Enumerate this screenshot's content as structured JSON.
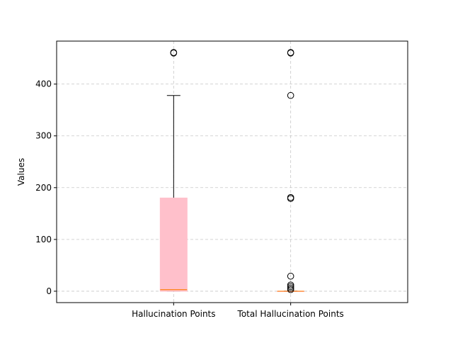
{
  "chart_data": {
    "type": "box",
    "title": "",
    "xlabel": "",
    "ylabel": "Values",
    "ylim": [
      -22,
      483
    ],
    "yticks": [
      0,
      100,
      200,
      300,
      400
    ],
    "grid": true,
    "categories": [
      "Hallucination Points",
      "Total Hallucination Points"
    ],
    "boxes": [
      {
        "name": "Hallucination Points",
        "whisker_low": 0,
        "q1": 0,
        "median": 3,
        "q3": 180,
        "whisker_high": 378,
        "fliers": [
          460,
          461
        ],
        "fill": "#ffc0cb",
        "median_color": "#ff7f0e"
      },
      {
        "name": "Total Hallucination Points",
        "whisker_low": 0,
        "q1": 0,
        "median": 0,
        "q3": 0,
        "whisker_high": 0,
        "fliers": [
          3,
          6,
          9,
          12,
          29,
          179,
          181,
          378,
          460,
          461
        ],
        "fill": "#ffc0cb",
        "median_color": "#ff7f0e"
      }
    ]
  }
}
